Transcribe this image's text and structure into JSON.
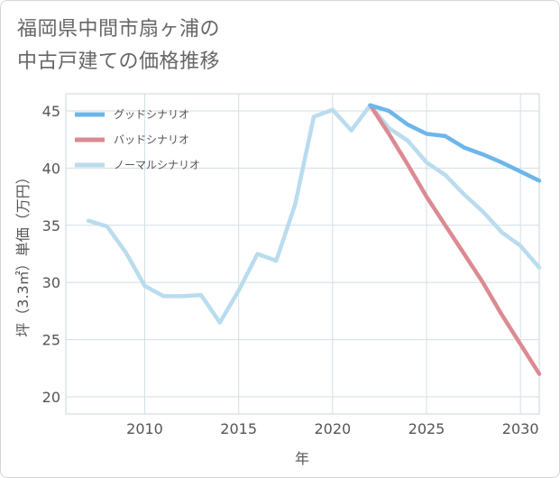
{
  "title_lines": [
    "福岡県中間市扇ヶ浦の",
    "中古戸建ての価格推移"
  ],
  "chart_data": {
    "type": "line",
    "title": "福岡県中間市扇ヶ浦の中古戸建ての価格推移",
    "xlabel": "年",
    "ylabel": "坪（3.3㎡）単価（万円）",
    "xlim": [
      2005.8,
      2031
    ],
    "ylim": [
      18.5,
      46.5
    ],
    "xticks": [
      2010,
      2015,
      2020,
      2025,
      2030
    ],
    "yticks": [
      20,
      25,
      30,
      35,
      40,
      45
    ],
    "grid": true,
    "legend_position": "top-left",
    "series": [
      {
        "name": "グッドシナリオ",
        "color": "#6cb6ea",
        "x": [
          2022,
          2023,
          2024,
          2025,
          2026,
          2027,
          2028,
          2029,
          2030,
          2031
        ],
        "y": [
          45.5,
          45.0,
          43.8,
          43.0,
          42.8,
          41.8,
          41.2,
          40.5,
          39.7,
          38.9
        ]
      },
      {
        "name": "バッドシナリオ",
        "color": "#dc8a91",
        "x": [
          2022,
          2023,
          2024,
          2025,
          2026,
          2027,
          2028,
          2029,
          2030,
          2031
        ],
        "y": [
          45.5,
          43.0,
          40.3,
          37.5,
          35.0,
          32.5,
          30.0,
          27.2,
          24.6,
          22.0
        ]
      },
      {
        "name": "ノーマルシナリオ",
        "color": "#b9dcee",
        "x": [
          2007,
          2008,
          2009,
          2010,
          2011,
          2012,
          2013,
          2014,
          2015,
          2016,
          2017,
          2018,
          2019,
          2020,
          2021,
          2022,
          2023,
          2024,
          2025,
          2026,
          2027,
          2028,
          2029,
          2030,
          2031
        ],
        "y": [
          35.4,
          34.9,
          32.6,
          29.7,
          28.8,
          28.8,
          28.9,
          26.5,
          29.3,
          32.5,
          31.9,
          36.8,
          44.5,
          45.1,
          43.3,
          45.5,
          43.5,
          42.4,
          40.5,
          39.4,
          37.7,
          36.2,
          34.4,
          33.2,
          31.3
        ]
      }
    ]
  }
}
